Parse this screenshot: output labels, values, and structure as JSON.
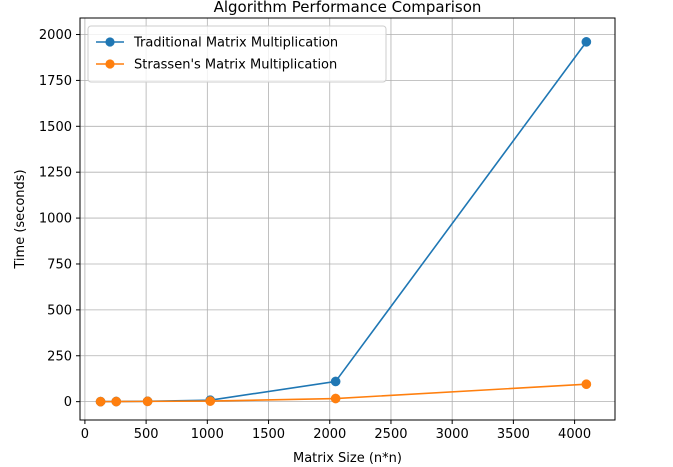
{
  "chart_data": {
    "type": "line",
    "title": "Algorithm Performance Comparison",
    "xlabel": "Matrix Size (n*n)",
    "ylabel": "Time (seconds)",
    "xlim": [
      -40,
      4330
    ],
    "ylim": [
      -100,
      2090
    ],
    "xticks": [
      0,
      500,
      1000,
      1500,
      2000,
      2500,
      3000,
      3500,
      4000
    ],
    "xtick_labels": [
      "0",
      "500",
      "1000",
      "1500",
      "2000",
      "2500",
      "3000",
      "3500",
      "4000"
    ],
    "yticks": [
      0,
      250,
      500,
      750,
      1000,
      1250,
      1500,
      1750,
      2000
    ],
    "ytick_labels": [
      "0",
      "250",
      "500",
      "750",
      "1000",
      "1250",
      "1500",
      "1750",
      "2000"
    ],
    "grid": true,
    "legend_position": "top-left",
    "series": [
      {
        "name": "Traditional Matrix Multiplication",
        "color": "#1f77b4",
        "marker": "circle",
        "x": [
          128,
          256,
          512,
          1024,
          2048,
          4096
        ],
        "y": [
          0.2,
          0.8,
          2,
          8,
          110,
          1960
        ]
      },
      {
        "name": "Strassen's Matrix Multiplication",
        "color": "#ff7f0e",
        "marker": "circle",
        "x": [
          128,
          256,
          512,
          1024,
          2048,
          4096
        ],
        "y": [
          0.1,
          0.5,
          1.5,
          3,
          17,
          95
        ]
      }
    ]
  }
}
